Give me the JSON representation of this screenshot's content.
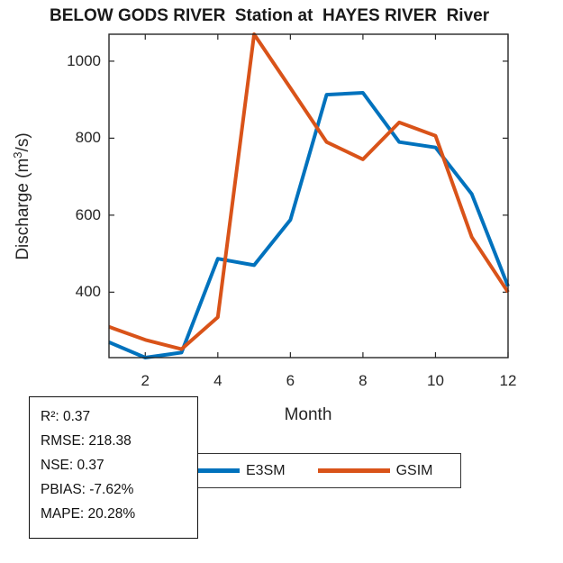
{
  "title": "BELOW GODS RIVER  Station at  HAYES RIVER  River",
  "chart_data": {
    "type": "line",
    "x": [
      1,
      2,
      3,
      4,
      5,
      6,
      7,
      8,
      9,
      10,
      11,
      12
    ],
    "series": [
      {
        "name": "E3SM",
        "color": "#0072BD",
        "values": [
          270,
          230,
          243,
          487,
          470,
          588,
          913,
          918,
          790,
          776,
          655,
          415
        ]
      },
      {
        "name": "GSIM",
        "color": "#D95319",
        "values": [
          310,
          276,
          252,
          335,
          1070,
          930,
          790,
          745,
          841,
          806,
          543,
          400
        ]
      }
    ],
    "title": "BELOW GODS RIVER  Station at  HAYES RIVER  River",
    "xlabel": "Month",
    "ylabel": "Discharge (m³/s)",
    "xlim": [
      1,
      12
    ],
    "ylim": [
      230,
      1070
    ],
    "xticks": [
      2,
      4,
      6,
      8,
      10,
      12
    ],
    "xtick_labels": [
      "2",
      "4",
      "6",
      "8",
      "10",
      "12"
    ],
    "yticks": [
      400,
      600,
      800,
      1000
    ],
    "ytick_labels": [
      "400",
      "600",
      "800",
      "1000"
    ],
    "grid": false,
    "legend_position": "south-outside-horizontal",
    "line_width": 4
  },
  "ylabel_parts": {
    "pre": "Discharge (m",
    "sup": "3",
    "post": "/s)"
  },
  "legend": {
    "items": [
      {
        "label": "E3SM",
        "color": "#0072BD"
      },
      {
        "label": "GSIM",
        "color": "#D95319"
      }
    ]
  },
  "stats_box": {
    "lines": [
      "R²: 0.37",
      "RMSE: 218.38",
      "NSE: 0.37",
      "PBIAS: -7.62%",
      "MAPE: 20.28%"
    ]
  },
  "colors": {
    "background": "#ffffff",
    "axis": "#262626",
    "text": "#262626",
    "series_blue": "#0072BD",
    "series_orange": "#D95319"
  }
}
